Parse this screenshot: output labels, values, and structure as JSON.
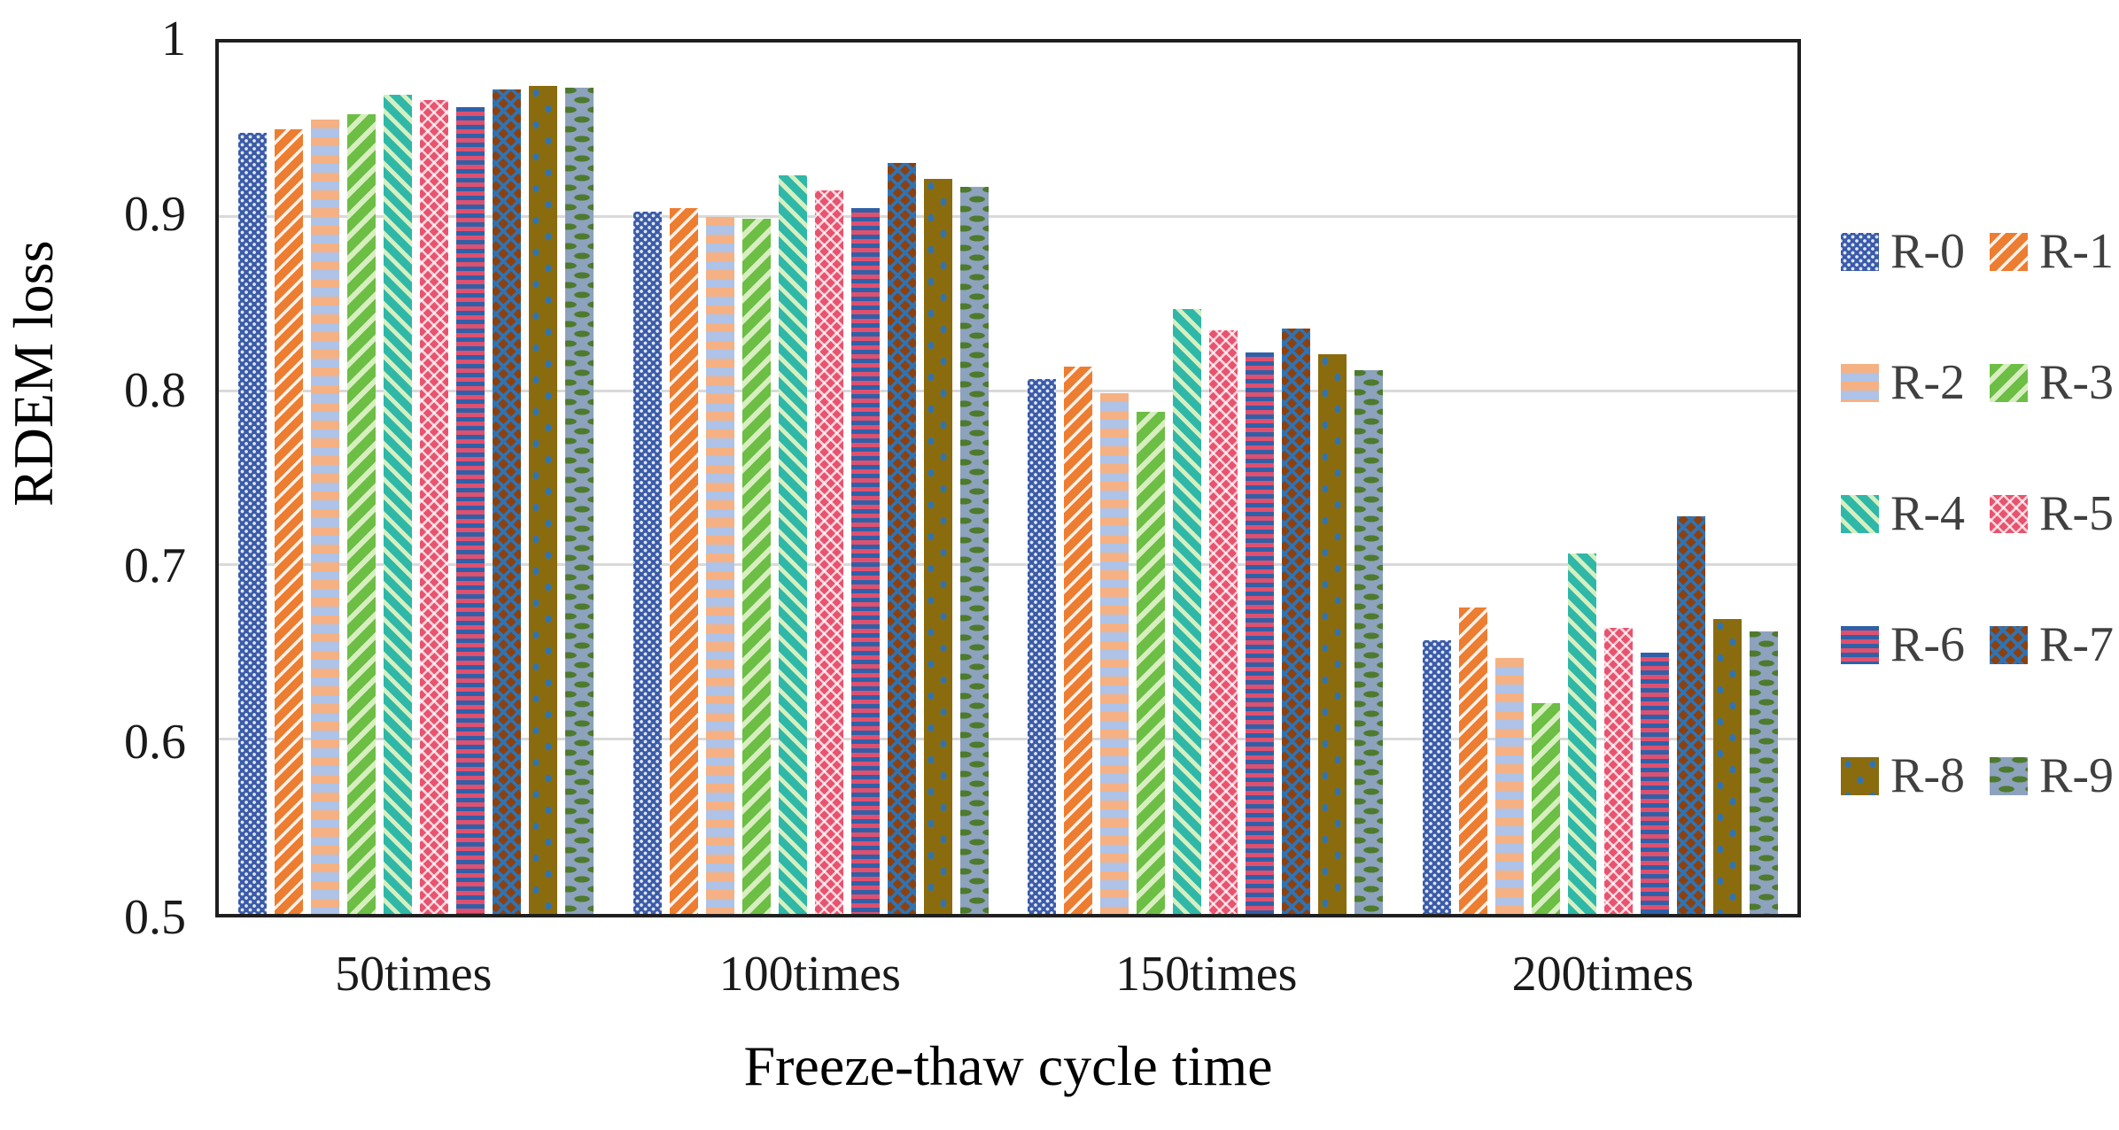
{
  "chart_data": {
    "type": "bar",
    "title": "",
    "xlabel": "Freeze-thaw cycle time",
    "ylabel": "RDEM loss",
    "categories": [
      "50times",
      "100times",
      "150times",
      "200times"
    ],
    "series": [
      {
        "name": "R-0",
        "color": "#3A5BA9",
        "color2": "#FFFFFF",
        "pattern": "diamond-dot-grid",
        "values": [
          0.948,
          0.903,
          0.807,
          0.657
        ]
      },
      {
        "name": "R-1",
        "color": "#ED7D31",
        "color2": "#FFFFFF",
        "pattern": "diagonal-stripes-down",
        "values": [
          0.95,
          0.905,
          0.814,
          0.676
        ]
      },
      {
        "name": "R-2",
        "color": "#F5B183",
        "color2": "#AEC3E7",
        "pattern": "horizontal-stripes-wide",
        "values": [
          0.956,
          0.9,
          0.799,
          0.647
        ]
      },
      {
        "name": "R-3",
        "color": "#6CBE45",
        "color2": "#D8EEC0",
        "pattern": "diagonal-stripes-down",
        "values": [
          0.959,
          0.899,
          0.788,
          0.621
        ]
      },
      {
        "name": "R-4",
        "color": "#2FB8A8",
        "color2": "#D6EFC1",
        "pattern": "diagonal-stripes-up",
        "values": [
          0.97,
          0.924,
          0.847,
          0.707
        ]
      },
      {
        "name": "R-5",
        "color": "#E8536F",
        "color2": "#FFFFFF",
        "pattern": "chevron-lattice",
        "values": [
          0.967,
          0.915,
          0.835,
          0.664
        ]
      },
      {
        "name": "R-6",
        "color": "#3060A8",
        "color2": "#E0506E",
        "pattern": "horizontal-stripes-thin",
        "values": [
          0.963,
          0.905,
          0.822,
          0.65
        ]
      },
      {
        "name": "R-7",
        "color": "#8C4110",
        "color2": "#2E74B5",
        "pattern": "diamond-lattice",
        "values": [
          0.973,
          0.931,
          0.836,
          0.728
        ]
      },
      {
        "name": "R-8",
        "color": "#8A6C0F",
        "color2": "#2E74B5",
        "pattern": "sparse-dots",
        "values": [
          0.975,
          0.922,
          0.821,
          0.669
        ]
      },
      {
        "name": "R-9",
        "color": "#8DA2BC",
        "color2": "#4E7A2E",
        "pattern": "staggered-dashes",
        "values": [
          0.974,
          0.917,
          0.812,
          0.662
        ]
      }
    ],
    "ylim": [
      0.5,
      1.0
    ],
    "yticks": [
      {
        "label": "1",
        "value": 1.0
      },
      {
        "label": "0.9",
        "value": 0.9
      },
      {
        "label": "0.8",
        "value": 0.8
      },
      {
        "label": "0.7",
        "value": 0.7
      },
      {
        "label": "0.6",
        "value": 0.6
      },
      {
        "label": "0.5",
        "value": 0.5
      }
    ],
    "gridline_values": [
      0.9,
      0.8,
      0.7,
      0.6
    ],
    "grid": "horizontal-only",
    "legend_position": "right",
    "legend_columns": 2,
    "colors": {
      "frame": "#1F1F1F",
      "gridline": "#D9D9D9",
      "tick_text": "#1A1A1A",
      "axis_title_text": "#000000",
      "legend_text": "#404040",
      "background": "#FFFFFF"
    }
  }
}
